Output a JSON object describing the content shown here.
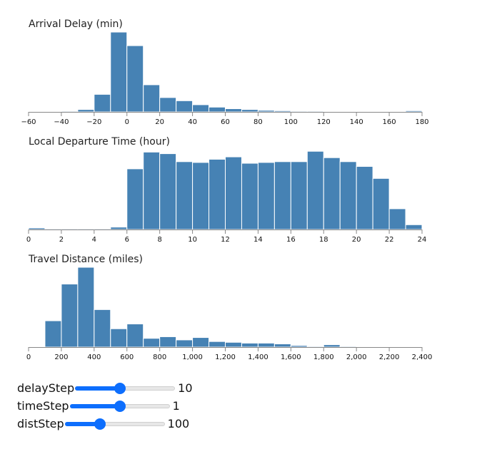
{
  "chart_data": [
    {
      "type": "bar",
      "title": "Arrival Delay (min)",
      "xlim": [
        -60,
        180
      ],
      "bin_width": 10,
      "bin_starts": [
        -60,
        -50,
        -40,
        -30,
        -20,
        -10,
        0,
        10,
        20,
        30,
        40,
        50,
        60,
        70,
        80,
        90,
        100,
        110,
        120,
        130,
        140,
        150,
        160,
        170
      ],
      "values": [
        0.5,
        0.5,
        1,
        3,
        22,
        100,
        83,
        34,
        18,
        14,
        9,
        6,
        4,
        3,
        2,
        1.5,
        1,
        1,
        0.7,
        0.7,
        0.5,
        0.5,
        0.4,
        1.5
      ],
      "ylim": [
        0,
        100
      ],
      "ticks": [
        -60,
        -40,
        -20,
        0,
        20,
        40,
        60,
        80,
        100,
        120,
        140,
        160,
        180
      ],
      "tick_labels": [
        "−60",
        "−40",
        "−20",
        "0",
        "20",
        "40",
        "60",
        "80",
        "100",
        "120",
        "140",
        "160",
        "180"
      ]
    },
    {
      "type": "bar",
      "title": "Local Departure Time (hour)",
      "xlim": [
        0,
        24
      ],
      "bin_width": 1,
      "bin_starts": [
        0,
        1,
        2,
        3,
        4,
        5,
        6,
        7,
        8,
        9,
        10,
        11,
        12,
        13,
        14,
        15,
        16,
        17,
        18,
        19,
        20,
        21,
        22,
        23
      ],
      "values": [
        2,
        1,
        1,
        1,
        1,
        3,
        76,
        97,
        95,
        85,
        84,
        88,
        91,
        83,
        84,
        85,
        85,
        98,
        90,
        85,
        79,
        64,
        26,
        6
      ],
      "ylim": [
        0,
        100
      ],
      "ticks": [
        0,
        2,
        4,
        6,
        8,
        10,
        12,
        14,
        16,
        18,
        20,
        22,
        24
      ],
      "tick_labels": [
        "0",
        "2",
        "4",
        "6",
        "8",
        "10",
        "12",
        "14",
        "16",
        "18",
        "20",
        "22",
        "24"
      ]
    },
    {
      "type": "bar",
      "title": "Travel Distance (miles)",
      "xlim": [
        0,
        2400
      ],
      "bin_width": 100,
      "bin_starts": [
        100,
        200,
        300,
        400,
        500,
        600,
        700,
        800,
        900,
        1000,
        1100,
        1200,
        1300,
        1400,
        1500,
        1600,
        1700,
        1800,
        1900,
        2000,
        2100,
        2200
      ],
      "values": [
        33,
        79,
        100,
        47,
        23,
        29,
        11,
        13,
        9,
        12,
        7,
        6,
        5,
        5,
        4,
        2,
        1,
        3,
        1,
        0,
        0.5,
        0.5
      ],
      "ylim": [
        0,
        100
      ],
      "ticks": [
        0,
        200,
        400,
        600,
        800,
        1000,
        1200,
        1400,
        1600,
        1800,
        2000,
        2200,
        2400
      ],
      "tick_labels": [
        "0",
        "200",
        "400",
        "600",
        "800",
        "1,000",
        "1,200",
        "1,400",
        "1,600",
        "1,800",
        "2,000",
        "2,200",
        "2,400"
      ]
    }
  ],
  "controls": {
    "delay": {
      "label": "delayStep",
      "value": "10",
      "fill": 0.45
    },
    "time": {
      "label": "timeStep",
      "value": "1",
      "fill": 0.5
    },
    "dist": {
      "label": "distStep",
      "value": "100",
      "fill": 0.35
    }
  },
  "colors": {
    "bar": "#4682b4",
    "accent": "#0d6efd"
  }
}
